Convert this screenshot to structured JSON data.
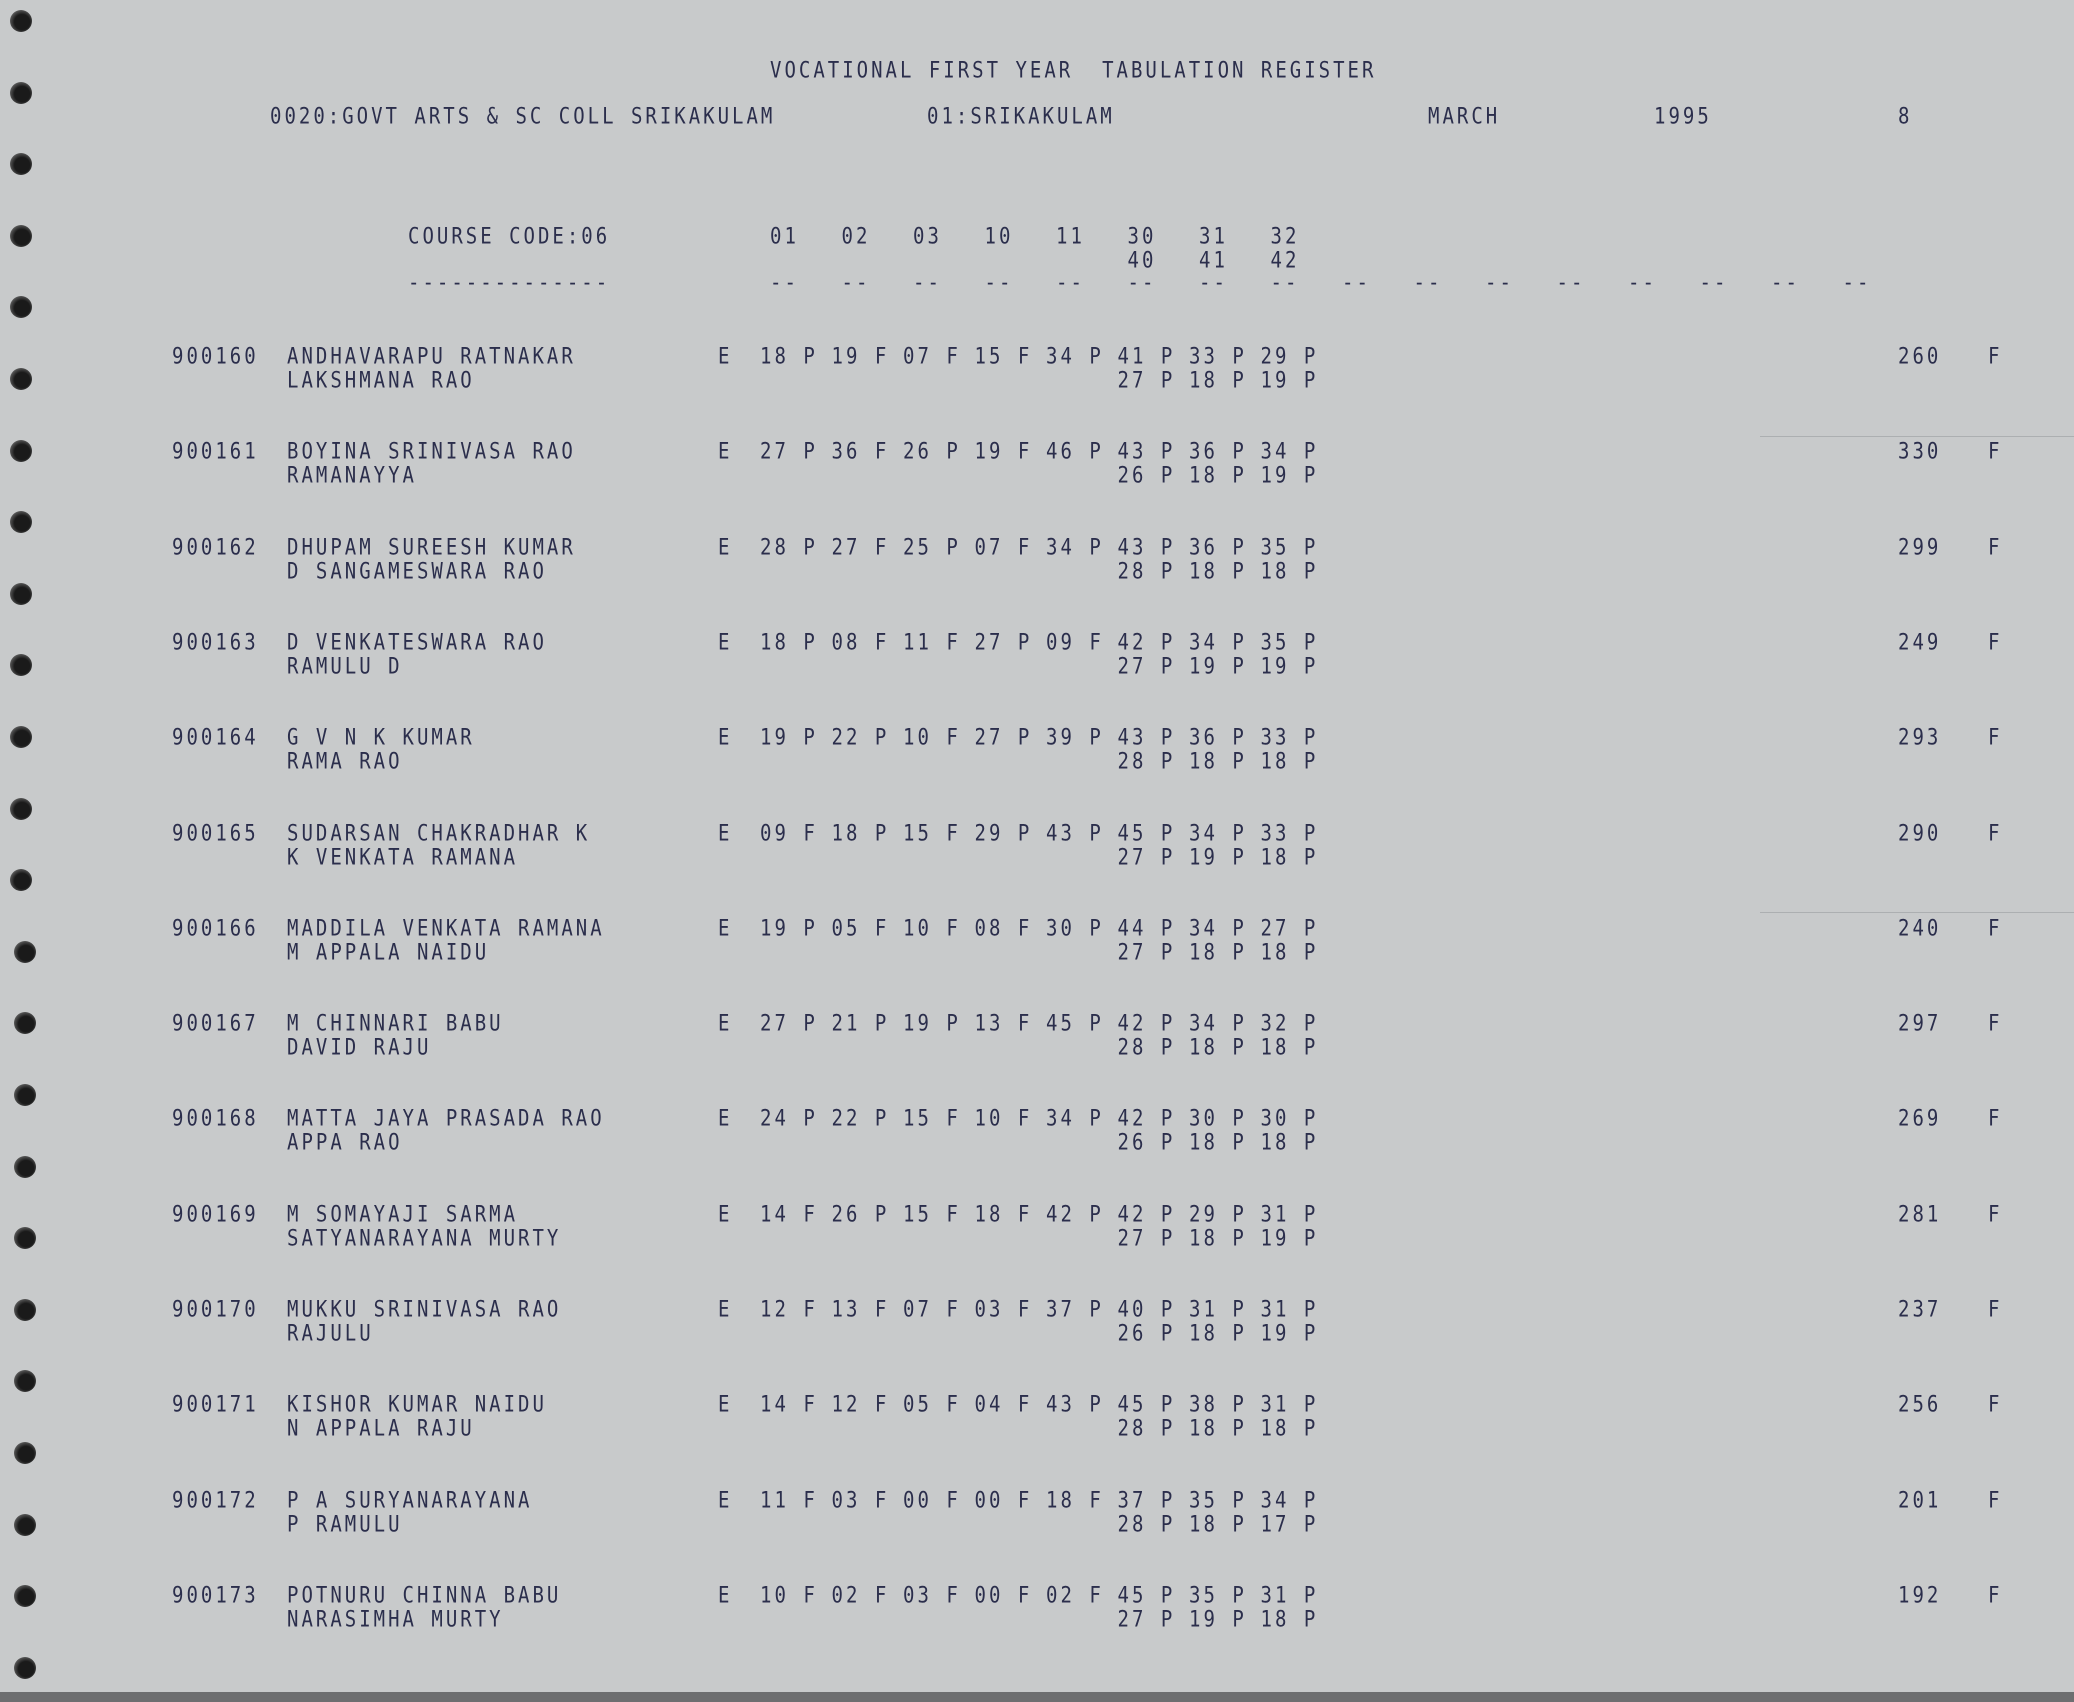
{
  "header": {
    "title": "VOCATIONAL FIRST YEAR  TABULATION REGISTER",
    "college": "0020:GOVT ARTS & SC COLL SRIKAKULAM",
    "district": "01:SRIKAKULAM",
    "month": "MARCH",
    "year": "1995",
    "page": "8"
  },
  "course": {
    "label": "COURSE CODE:06",
    "underline": "--------------",
    "subjects_row1": [
      "01",
      "02",
      "03",
      "10",
      "11",
      "30",
      "31",
      "32"
    ],
    "subjects_row2": [
      "40",
      "41",
      "42"
    ],
    "dash_groups": 16,
    "dash": "--"
  },
  "records": [
    {
      "id": "900160",
      "name": "ANDHAVARAPU RATNAKAR",
      "parent": "LAKSHMANA RAO",
      "medium": "E",
      "marks": [
        "18 P",
        "19 F",
        "07 F",
        "15 F",
        "34 P",
        "41 P",
        "33 P",
        "29 P"
      ],
      "marks2": [
        "27 P",
        "18 P",
        "19 P"
      ],
      "total": "260",
      "result": "F"
    },
    {
      "id": "900161",
      "name": "BOYINA SRINIVASA RAO",
      "parent": "RAMANAYYA",
      "medium": "E",
      "marks": [
        "27 P",
        "36 F",
        "26 P",
        "19 F",
        "46 P",
        "43 P",
        "36 P",
        "34 P"
      ],
      "marks2": [
        "26 P",
        "18 P",
        "19 P"
      ],
      "total": "330",
      "result": "F"
    },
    {
      "id": "900162",
      "name": "DHUPAM SUREESH KUMAR",
      "parent": "D SANGAMESWARA RAO",
      "medium": "E",
      "marks": [
        "28 P",
        "27 F",
        "25 P",
        "07 F",
        "34 P",
        "43 P",
        "36 P",
        "35 P"
      ],
      "marks2": [
        "28 P",
        "18 P",
        "18 P"
      ],
      "total": "299",
      "result": "F"
    },
    {
      "id": "900163",
      "name": "D VENKATESWARA RAO",
      "parent": "RAMULU D",
      "medium": "E",
      "marks": [
        "18 P",
        "08 F",
        "11 F",
        "27 P",
        "09 F",
        "42 P",
        "34 P",
        "35 P"
      ],
      "marks2": [
        "27 P",
        "19 P",
        "19 P"
      ],
      "total": "249",
      "result": "F"
    },
    {
      "id": "900164",
      "name": "G V N K KUMAR",
      "parent": "RAMA RAO",
      "medium": "E",
      "marks": [
        "19 P",
        "22 P",
        "10 F",
        "27 P",
        "39 P",
        "43 P",
        "36 P",
        "33 P"
      ],
      "marks2": [
        "28 P",
        "18 P",
        "18 P"
      ],
      "total": "293",
      "result": "F"
    },
    {
      "id": "900165",
      "name": "SUDARSAN CHAKRADHAR K",
      "parent": "K VENKATA RAMANA",
      "medium": "E",
      "marks": [
        "09 F",
        "18 P",
        "15 F",
        "29 P",
        "43 P",
        "45 P",
        "34 P",
        "33 P"
      ],
      "marks2": [
        "27 P",
        "19 P",
        "18 P"
      ],
      "total": "290",
      "result": "F"
    },
    {
      "id": "900166",
      "name": "MADDILA VENKATA RAMANA",
      "parent": "M APPALA NAIDU",
      "medium": "E",
      "marks": [
        "19 P",
        "05 F",
        "10 F",
        "08 F",
        "30 P",
        "44 P",
        "34 P",
        "27 P"
      ],
      "marks2": [
        "27 P",
        "18 P",
        "18 P"
      ],
      "total": "240",
      "result": "F"
    },
    {
      "id": "900167",
      "name": "M CHINNARI BABU",
      "parent": "DAVID RAJU",
      "medium": "E",
      "marks": [
        "27 P",
        "21 P",
        "19 P",
        "13 F",
        "45 P",
        "42 P",
        "34 P",
        "32 P"
      ],
      "marks2": [
        "28 P",
        "18 P",
        "18 P"
      ],
      "total": "297",
      "result": "F"
    },
    {
      "id": "900168",
      "name": "MATTA JAYA PRASADA RAO",
      "parent": "APPA RAO",
      "medium": "E",
      "marks": [
        "24 P",
        "22 P",
        "15 F",
        "10 F",
        "34 P",
        "42 P",
        "30 P",
        "30 P"
      ],
      "marks2": [
        "26 P",
        "18 P",
        "18 P"
      ],
      "total": "269",
      "result": "F"
    },
    {
      "id": "900169",
      "name": "M SOMAYAJI SARMA",
      "parent": "SATYANARAYANA MURTY",
      "medium": "E",
      "marks": [
        "14 F",
        "26 P",
        "15 F",
        "18 F",
        "42 P",
        "42 P",
        "29 P",
        "31 P"
      ],
      "marks2": [
        "27 P",
        "18 P",
        "19 P"
      ],
      "total": "281",
      "result": "F"
    },
    {
      "id": "900170",
      "name": "MUKKU SRINIVASA RAO",
      "parent": "RAJULU",
      "medium": "E",
      "marks": [
        "12 F",
        "13 F",
        "07 F",
        "03 F",
        "37 P",
        "40 P",
        "31 P",
        "31 P"
      ],
      "marks2": [
        "26 P",
        "18 P",
        "19 P"
      ],
      "total": "237",
      "result": "F"
    },
    {
      "id": "900171",
      "name": "KISHOR KUMAR NAIDU",
      "parent": "N APPALA RAJU",
      "medium": "E",
      "marks": [
        "14 F",
        "12 F",
        "05 F",
        "04 F",
        "43 P",
        "45 P",
        "38 P",
        "31 P"
      ],
      "marks2": [
        "28 P",
        "18 P",
        "18 P"
      ],
      "total": "256",
      "result": "F"
    },
    {
      "id": "900172",
      "name": "P A SURYANARAYANA",
      "parent": "P RAMULU",
      "medium": "E",
      "marks": [
        "11 F",
        "03 F",
        "00 F",
        "00 F",
        "18 F",
        "37 P",
        "35 P",
        "34 P"
      ],
      "marks2": [
        "28 P",
        "18 P",
        "17 P"
      ],
      "total": "201",
      "result": "F"
    },
    {
      "id": "900173",
      "name": "POTNURU CHINNA BABU",
      "parent": "NARASIMHA MURTY",
      "medium": "E",
      "marks": [
        "10 F",
        "02 F",
        "03 F",
        "00 F",
        "02 F",
        "45 P",
        "35 P",
        "31 P"
      ],
      "marks2": [
        "27 P",
        "19 P",
        "18 P"
      ],
      "total": "192",
      "result": "F"
    }
  ],
  "colors": {
    "paper": "#c8cacb",
    "ink": "#2b2e4c"
  }
}
